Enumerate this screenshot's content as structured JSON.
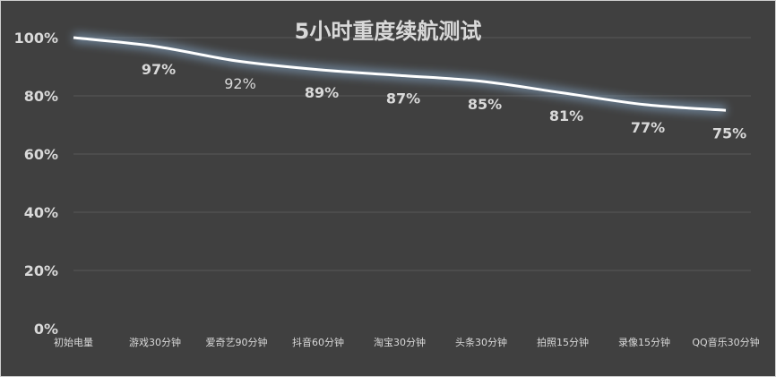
{
  "chart_data": {
    "type": "line",
    "title": "5小时重度续航测试",
    "categories": [
      "初始电量",
      "游戏30分钟",
      "爱奇艺90分钟",
      "抖音60分钟",
      "淘宝30分钟",
      "头条30分钟",
      "拍照15分钟",
      "录像15分钟",
      "QQ音乐30分钟"
    ],
    "values": [
      100,
      97,
      92,
      89,
      87,
      85,
      81,
      77,
      75
    ],
    "data_labels": [
      "",
      "97%",
      "92%",
      "89%",
      "87%",
      "85%",
      "81%",
      "77%",
      "75%"
    ],
    "yticks": [
      "0%",
      "20%",
      "40%",
      "60%",
      "80%",
      "100%"
    ],
    "ylim": [
      0,
      100
    ],
    "grid": true,
    "legend": "none",
    "colors": {
      "background": "#404040",
      "line": "#ffffff",
      "glow": "#8fb4d8",
      "text": "#d9d9d9",
      "grid": "#595959"
    }
  }
}
